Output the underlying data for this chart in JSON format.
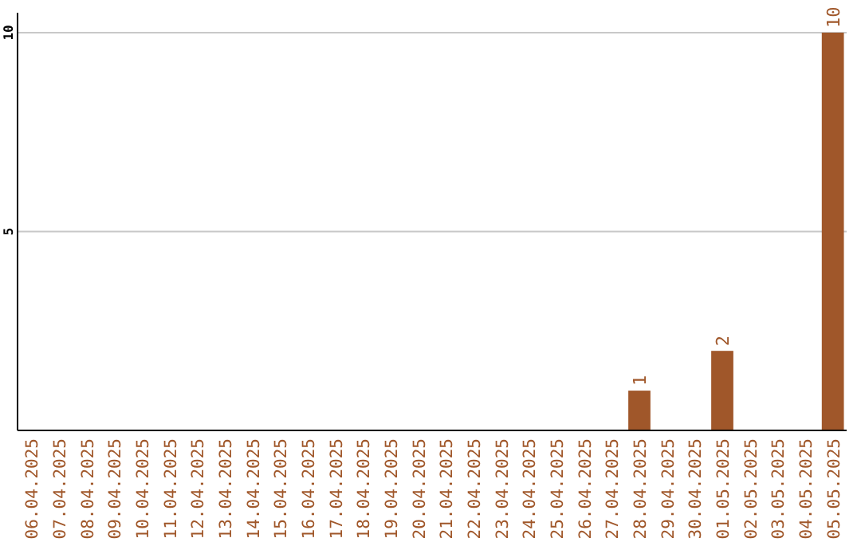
{
  "chart_data": {
    "type": "bar",
    "categories": [
      "06.04.2025",
      "07.04.2025",
      "08.04.2025",
      "09.04.2025",
      "10.04.2025",
      "11.04.2025",
      "12.04.2025",
      "13.04.2025",
      "14.04.2025",
      "15.04.2025",
      "16.04.2025",
      "17.04.2025",
      "18.04.2025",
      "19.04.2025",
      "20.04.2025",
      "21.04.2025",
      "22.04.2025",
      "23.04.2025",
      "24.04.2025",
      "25.04.2025",
      "26.04.2025",
      "27.04.2025",
      "28.04.2025",
      "29.04.2025",
      "30.04.2025",
      "01.05.2025",
      "02.05.2025",
      "03.05.2025",
      "04.05.2025",
      "05.05.2025"
    ],
    "values": [
      0,
      0,
      0,
      0,
      0,
      0,
      0,
      0,
      0,
      0,
      0,
      0,
      0,
      0,
      0,
      0,
      0,
      0,
      0,
      0,
      0,
      0,
      1,
      0,
      0,
      2,
      0,
      0,
      0,
      10
    ],
    "value_labels": [
      null,
      null,
      null,
      null,
      null,
      null,
      null,
      null,
      null,
      null,
      null,
      null,
      null,
      null,
      null,
      null,
      null,
      null,
      null,
      null,
      null,
      null,
      "1",
      null,
      null,
      "2",
      null,
      null,
      null,
      "10"
    ],
    "color": "#a0572a",
    "ylim": [
      0,
      10.5
    ],
    "yticks": [
      5,
      10
    ],
    "grid": "y"
  }
}
